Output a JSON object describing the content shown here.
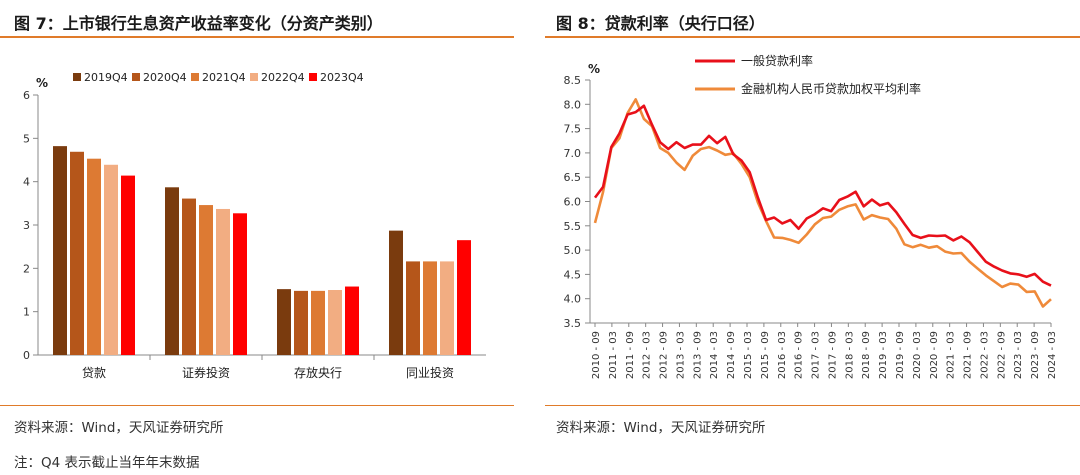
{
  "left_panel": {
    "title": "图 7：上市银行生息资产收益率变化（分资产类别）",
    "source": "资料来源：Wind，天风证券研究所",
    "note": "注：Q4 表示截止当年年末数据"
  },
  "right_panel": {
    "title": "图 8：贷款利率（央行口径）",
    "source": "资料来源：Wind，天风证券研究所"
  },
  "chart_data": [
    {
      "type": "bar",
      "title": "",
      "ylabel": "%",
      "ylim": [
        0,
        6
      ],
      "yticks": [
        "0",
        "1",
        "2",
        "3",
        "4",
        "5",
        "6"
      ],
      "categories": [
        "贷款",
        "证券投资",
        "存放央行",
        "同业投资"
      ],
      "series": [
        {
          "name": "2019Q4",
          "color": "#7a3b0e",
          "values": [
            4.82,
            3.87,
            1.52,
            2.87
          ]
        },
        {
          "name": "2020Q4",
          "color": "#b5561a",
          "values": [
            4.69,
            3.61,
            1.48,
            2.16
          ]
        },
        {
          "name": "2021Q4",
          "color": "#dd7a33",
          "values": [
            4.53,
            3.46,
            1.48,
            2.16
          ]
        },
        {
          "name": "2022Q4",
          "color": "#f2ad82",
          "values": [
            4.39,
            3.37,
            1.5,
            2.16
          ]
        },
        {
          "name": "2023Q4",
          "color": "#ff0000",
          "values": [
            4.14,
            3.27,
            1.58,
            2.65
          ]
        }
      ],
      "legend_position": "top"
    },
    {
      "type": "line",
      "title": "",
      "ylabel": "%",
      "ylim": [
        3.5,
        8.5
      ],
      "yticks": [
        "3.5",
        "4.0",
        "4.5",
        "5.0",
        "5.5",
        "6.0",
        "6.5",
        "7.0",
        "7.5",
        "8.0",
        "8.5"
      ],
      "xticks": [
        "2010 - 09",
        "2011 - 03",
        "2011 - 09",
        "2012 - 03",
        "2012 - 09",
        "2013 - 03",
        "2013 - 09",
        "2014 - 03",
        "2014 - 09",
        "2015 - 03",
        "2015 - 09",
        "2016 - 03",
        "2016 - 09",
        "2017 - 03",
        "2017 - 09",
        "2018 - 03",
        "2018 - 09",
        "2019 - 03",
        "2019 - 09",
        "2020 - 03",
        "2020 - 09",
        "2021 - 03",
        "2021 - 09",
        "2022 - 03",
        "2022 - 09",
        "2023 - 03",
        "2023 - 09",
        "2024 - 03"
      ],
      "legend_position": "top",
      "series": [
        {
          "name": "一般贷款利率",
          "color": "#e8101a",
          "values": [
            6.08,
            6.3,
            7.12,
            7.4,
            7.79,
            7.84,
            7.97,
            7.58,
            7.22,
            7.08,
            7.22,
            7.1,
            7.17,
            7.17,
            7.35,
            7.2,
            7.33,
            6.97,
            6.84,
            6.6,
            6.08,
            5.62,
            5.67,
            5.55,
            5.62,
            5.44,
            5.65,
            5.74,
            5.86,
            5.8,
            6.03,
            6.1,
            6.2,
            5.9,
            6.04,
            5.92,
            5.97,
            5.78,
            5.54,
            5.31,
            5.25,
            5.3,
            5.29,
            5.3,
            5.2,
            5.28,
            5.16,
            4.96,
            4.76,
            4.66,
            4.58,
            4.52,
            4.5,
            4.45,
            4.51,
            4.35,
            4.27
          ]
        },
        {
          "name": "金融机构人民币贷款加权平均利率",
          "color": "#ef8a3a",
          "values": [
            5.56,
            6.2,
            7.1,
            7.3,
            7.82,
            8.1,
            7.7,
            7.55,
            7.1,
            7.0,
            6.8,
            6.65,
            6.94,
            7.08,
            7.12,
            7.05,
            6.96,
            6.99,
            6.77,
            6.5,
            5.98,
            5.6,
            5.26,
            5.25,
            5.21,
            5.15,
            5.32,
            5.53,
            5.66,
            5.69,
            5.83,
            5.9,
            5.94,
            5.63,
            5.72,
            5.67,
            5.64,
            5.44,
            5.12,
            5.06,
            5.11,
            5.05,
            5.08,
            4.97,
            4.93,
            4.94,
            4.76,
            4.62,
            4.48,
            4.36,
            4.24,
            4.31,
            4.29,
            4.14,
            4.15,
            3.84,
            3.99
          ]
        }
      ]
    }
  ]
}
